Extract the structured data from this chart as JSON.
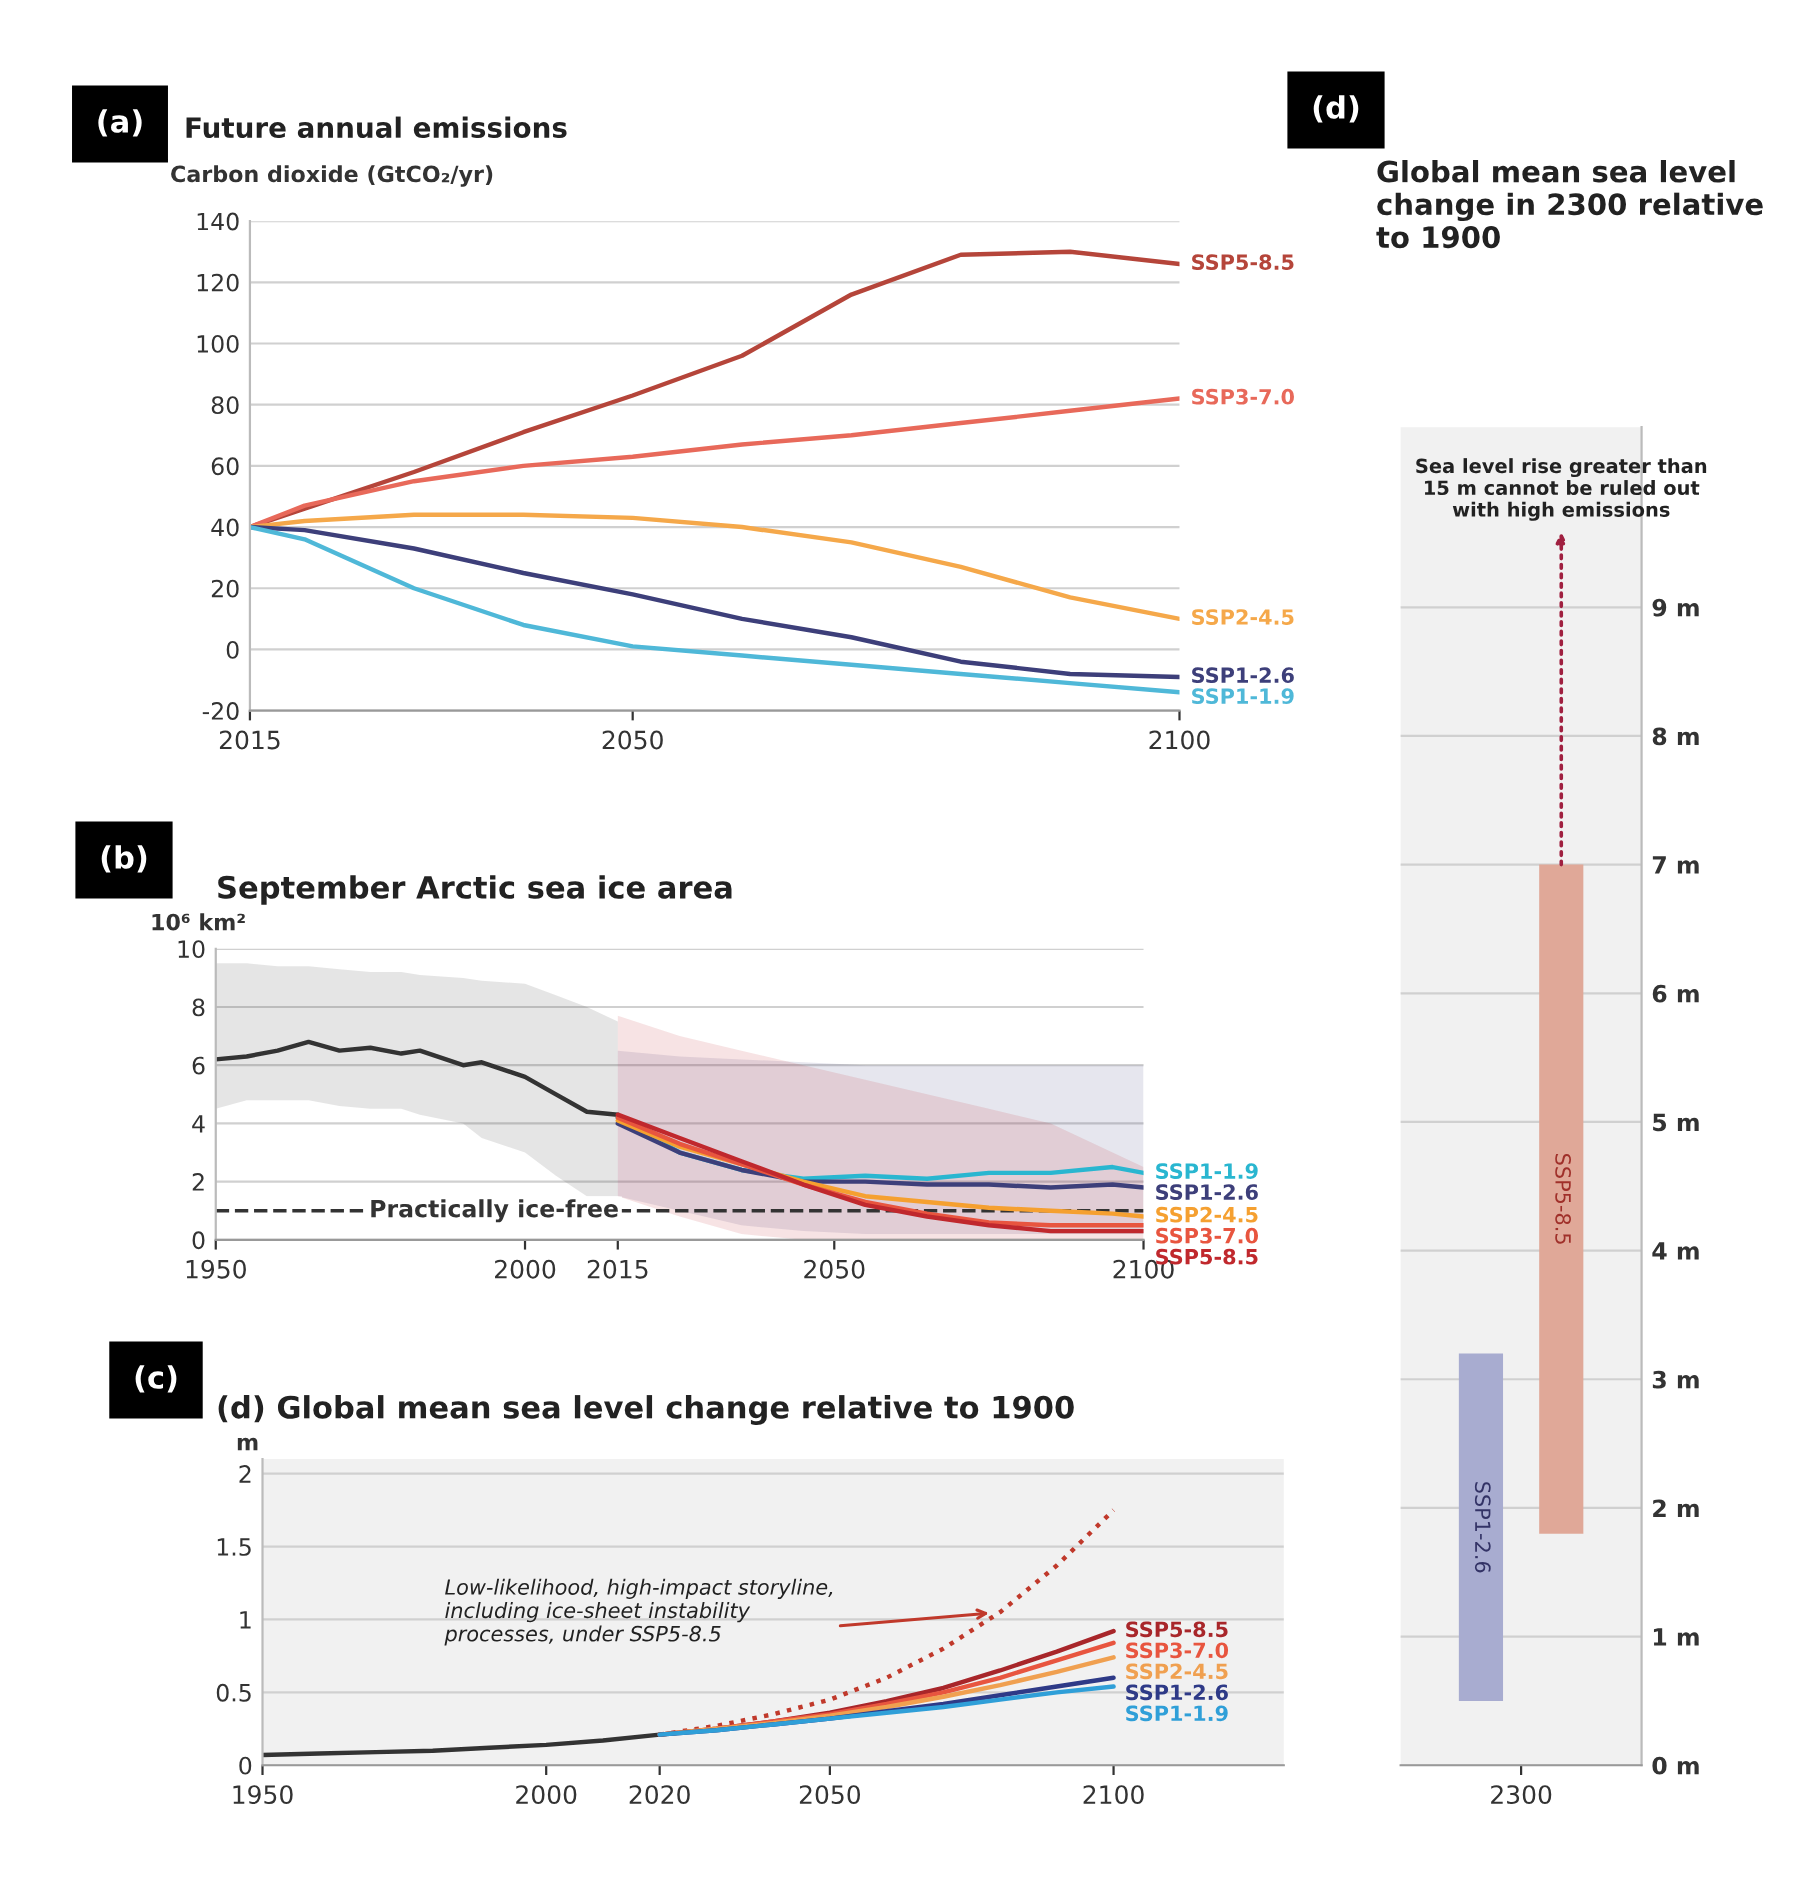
{
  "chart_data": [
    {
      "type": "line",
      "title": "Future annual emissions",
      "ylabel": "Carbon dioxide (GtCO₂/yr)",
      "annotations": [
        "(a)"
      ],
      "x": [
        2015,
        2020,
        2030,
        2040,
        2050,
        2060,
        2070,
        2080,
        2090,
        2100
      ],
      "xlim": [
        2015,
        2100
      ],
      "xticks": [
        2015,
        2050,
        2100
      ],
      "ylim": [
        -20,
        140
      ],
      "yticks": [
        -20,
        0,
        20,
        40,
        60,
        80,
        100,
        120,
        140
      ],
      "grid": "y",
      "series": [
        {
          "name": "SSP5-8.5",
          "color": "#b5453a",
          "values": [
            40,
            46,
            58,
            71,
            83,
            96,
            116,
            129,
            130,
            126
          ]
        },
        {
          "name": "SSP3-7.0",
          "color": "#e8695a",
          "values": [
            40,
            47,
            55,
            60,
            63,
            67,
            70,
            74,
            78,
            82
          ]
        },
        {
          "name": "SSP2-4.5",
          "color": "#f5a84a",
          "values": [
            40,
            42,
            44,
            44,
            43,
            40,
            35,
            27,
            17,
            10
          ]
        },
        {
          "name": "SSP1-2.6",
          "color": "#3d3f7a",
          "values": [
            40,
            39,
            33,
            25,
            18,
            10,
            4,
            -4,
            -8,
            -9
          ]
        },
        {
          "name": "SSP1-1.9",
          "color": "#4fb8d8",
          "values": [
            40,
            36,
            20,
            8,
            1,
            -2,
            -5,
            -8,
            -11,
            -14
          ]
        }
      ]
    },
    {
      "type": "line",
      "title": "September Arctic sea ice area",
      "ylabel": "10⁶ km²",
      "annotations": [
        "(b)"
      ],
      "x": [
        2015,
        2025,
        2035,
        2045,
        2055,
        2065,
        2075,
        2085,
        2095,
        2100
      ],
      "xlim": [
        1950,
        2100
      ],
      "xticks": [
        1950,
        2000,
        2015,
        2050,
        2100
      ],
      "ylim": [
        0,
        10
      ],
      "yticks": [
        0,
        2,
        4,
        6,
        8,
        10
      ],
      "grid": "y",
      "ref_lines": [
        {
          "axis": "y",
          "value": 1,
          "label": "Practically ice-free",
          "color": "#333333",
          "line_style": "dashed"
        }
      ],
      "series": [
        {
          "color": "#333333",
          "x": [
            1950,
            1955,
            1960,
            1965,
            1970,
            1975,
            1980,
            1983,
            1990,
            1993,
            2000,
            2005,
            2010,
            2015
          ],
          "values": [
            6.2,
            6.3,
            6.5,
            6.8,
            6.5,
            6.6,
            6.4,
            6.5,
            6.0,
            6.1,
            5.6,
            5.0,
            4.4,
            4.3
          ],
          "lower": [
            4.5,
            4.8,
            4.8,
            4.8,
            4.6,
            4.5,
            4.5,
            4.3,
            4.0,
            3.5,
            3.0,
            2.2,
            1.5,
            1.5
          ],
          "upper": [
            9.5,
            9.5,
            9.4,
            9.4,
            9.3,
            9.2,
            9.2,
            9.1,
            9.0,
            8.9,
            8.8,
            8.4,
            8.0,
            7.5
          ]
        },
        {
          "name": "SSP1-1.9",
          "color": "#29b6d0",
          "values": [
            4.2,
            3.0,
            2.4,
            2.1,
            2.2,
            2.1,
            2.3,
            2.3,
            2.5,
            2.3
          ]
        },
        {
          "name": "SSP1-2.6",
          "color": "#3d3f7a",
          "values": [
            4.0,
            3.0,
            2.4,
            2.0,
            2.0,
            1.9,
            1.9,
            1.8,
            1.9,
            1.8
          ],
          "lower": [
            1.5,
            1.0,
            0.5,
            0.3,
            0.2,
            0.2,
            0.2,
            0.2,
            0.2,
            0.2
          ],
          "upper": [
            6.5,
            6.3,
            6.2,
            6.1,
            6.0,
            6.0,
            6.0,
            6.0,
            6.0,
            6.0
          ]
        },
        {
          "name": "SSP2-4.5",
          "color": "#f5a030",
          "values": [
            4.1,
            3.2,
            2.6,
            2.0,
            1.5,
            1.3,
            1.1,
            1.0,
            0.9,
            0.8
          ]
        },
        {
          "name": "SSP3-7.0",
          "color": "#e8553f",
          "values": [
            4.2,
            3.3,
            2.6,
            1.9,
            1.3,
            0.9,
            0.6,
            0.5,
            0.5,
            0.5
          ]
        },
        {
          "name": "SSP5-8.5",
          "color": "#c0282d",
          "values": [
            4.3,
            3.5,
            2.7,
            1.9,
            1.2,
            0.8,
            0.5,
            0.3,
            0.3,
            0.3
          ],
          "lower": [
            1.5,
            0.8,
            0.2,
            0,
            0,
            0,
            0,
            0,
            0,
            0
          ],
          "upper": [
            7.7,
            7.0,
            6.5,
            6.0,
            5.5,
            5.0,
            4.5,
            4.0,
            3.0,
            2.5
          ]
        }
      ]
    },
    {
      "type": "line",
      "title": "(d) Global mean sea level change relative to 1900",
      "ylabel": "m",
      "annotations": [
        "(c)",
        {
          "text": "Low-likelihood, high-impact storyline,\nincluding ice-sheet instability\nprocesses, under SSP5-8.5",
          "x": 2080,
          "y": 1.05
        }
      ],
      "x": [
        2020,
        2030,
        2040,
        2050,
        2060,
        2070,
        2080,
        2090,
        2100
      ],
      "xlim": [
        1950,
        2130
      ],
      "xticks": [
        1950,
        2000,
        2020,
        2050,
        2100
      ],
      "ylim": [
        0,
        2.1
      ],
      "yticks": [
        0,
        0.5,
        1,
        1.5,
        2
      ],
      "grid": "y",
      "series": [
        {
          "color": "#333333",
          "x": [
            1950,
            1960,
            1970,
            1980,
            1990,
            2000,
            2010,
            2020
          ],
          "values": [
            0.07,
            0.08,
            0.09,
            0.1,
            0.12,
            0.14,
            0.17,
            0.21
          ]
        },
        {
          "color": "#c0392b",
          "line_style": "dotted",
          "values": [
            0.21,
            0.27,
            0.35,
            0.45,
            0.6,
            0.8,
            1.05,
            1.37,
            1.75
          ]
        },
        {
          "name": "SSP5-8.5",
          "color": "#a8262a",
          "values": [
            0.21,
            0.25,
            0.3,
            0.36,
            0.44,
            0.53,
            0.65,
            0.78,
            0.92
          ]
        },
        {
          "name": "SSP3-7.0",
          "color": "#e8553f",
          "values": [
            0.21,
            0.25,
            0.3,
            0.35,
            0.42,
            0.5,
            0.6,
            0.72,
            0.84
          ]
        },
        {
          "name": "SSP2-4.5",
          "color": "#f0a050",
          "values": [
            0.21,
            0.25,
            0.29,
            0.34,
            0.4,
            0.47,
            0.55,
            0.64,
            0.74
          ]
        },
        {
          "name": "SSP1-2.6",
          "color": "#2e3a87",
          "values": [
            0.21,
            0.24,
            0.28,
            0.32,
            0.37,
            0.42,
            0.48,
            0.54,
            0.6
          ]
        },
        {
          "name": "SSP1-1.9",
          "color": "#2f9fd8",
          "values": [
            0.21,
            0.24,
            0.28,
            0.32,
            0.36,
            0.4,
            0.45,
            0.5,
            0.54
          ]
        }
      ]
    },
    {
      "type": "bar",
      "title": "Global mean sea level change in 2300 relative to 1900",
      "annotations": [
        "(d)",
        "Sea level rise greater than\n15 m cannot be ruled out\nwith high emissions"
      ],
      "categories": [
        "2300"
      ],
      "ylim": [
        0,
        10.4
      ],
      "yticks": [
        {
          "value": 0,
          "label": "0 m"
        },
        {
          "value": 1,
          "label": "1 m"
        },
        {
          "value": 2,
          "label": "2 m"
        },
        {
          "value": 3,
          "label": "3 m"
        },
        {
          "value": 4,
          "label": "4 m"
        },
        {
          "value": 5,
          "label": "5 m"
        },
        {
          "value": 6,
          "label": "6 m"
        },
        {
          "value": 7,
          "label": "7 m"
        },
        {
          "value": 8,
          "label": "8 m"
        },
        {
          "value": 9,
          "label": "9 m"
        }
      ],
      "grid": "y",
      "series": [
        {
          "name": "SSP1-2.6",
          "color": "#a8acd0",
          "values": [
            2.7
          ],
          "base": [
            0.5
          ]
        },
        {
          "name": "SSP5-8.5",
          "color": "#e0a898",
          "values": [
            5.2
          ],
          "base": [
            1.8
          ]
        }
      ]
    }
  ]
}
